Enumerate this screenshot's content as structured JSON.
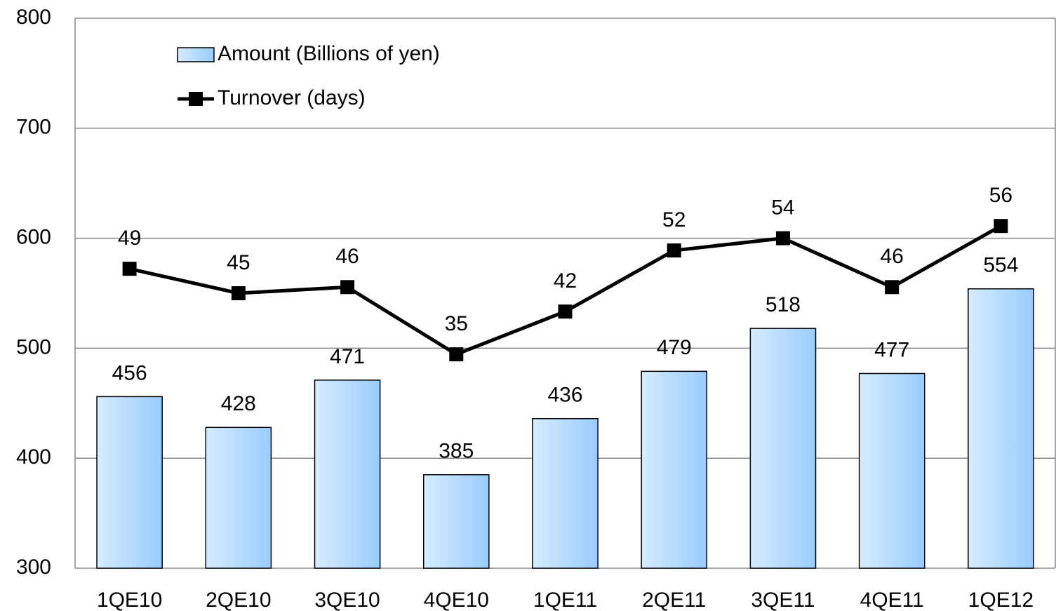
{
  "chart_data": {
    "type": "bar_line",
    "categories": [
      "1QE10",
      "2QE10",
      "3QE10",
      "4QE10",
      "1QE11",
      "2QE11",
      "3QE11",
      "4QE11",
      "1QE12"
    ],
    "series": [
      {
        "name": "Amount (Billions of yen)",
        "type": "bar",
        "color": "#99ccff",
        "values": [
          456,
          428,
          471,
          385,
          436,
          479,
          518,
          477,
          554
        ]
      },
      {
        "name": "Turnover (days)",
        "type": "line",
        "axis": "y2",
        "color": "#000000",
        "values": [
          49,
          45,
          46,
          35,
          42,
          52,
          54,
          46,
          56
        ]
      }
    ],
    "ylim": [
      300,
      800
    ],
    "yticks": [
      300,
      400,
      500,
      600,
      700,
      800
    ],
    "y2lim": [
      0,
      90
    ],
    "grid": true,
    "legend": "upper left"
  }
}
